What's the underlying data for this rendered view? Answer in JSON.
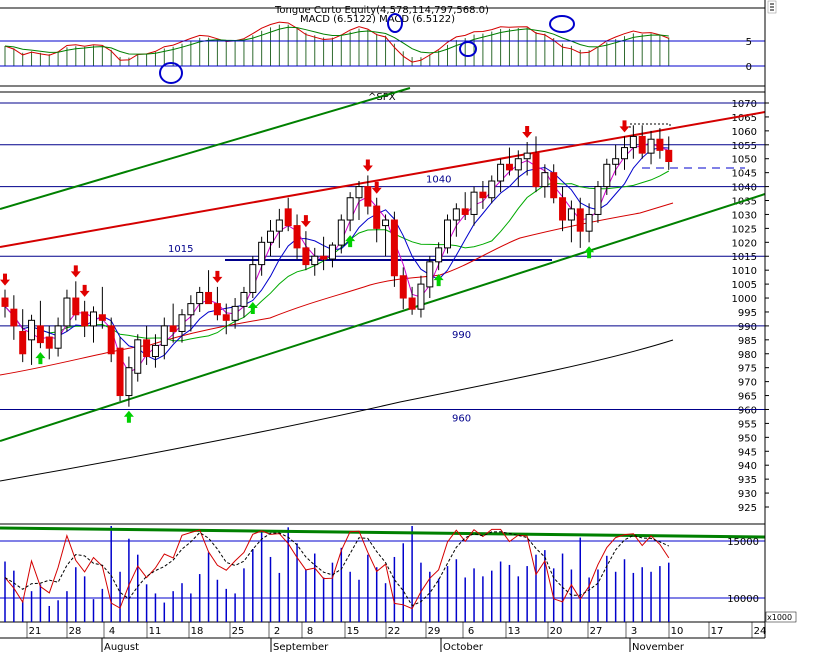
{
  "chart_data": {
    "type": "candlestick",
    "symbol": "^SPX",
    "macd_header": "MACD (6.5122) MACD (6.5122)",
    "equity_header": "Tongue Curto Equity(4,578,114,797,568.0)",
    "price_ylim": [
      918,
      1076
    ],
    "price_ticks": [
      925,
      930,
      935,
      940,
      945,
      950,
      955,
      960,
      965,
      970,
      975,
      980,
      985,
      990,
      995,
      1000,
      1005,
      1010,
      1015,
      1020,
      1025,
      1030,
      1035,
      1040,
      1045,
      1050,
      1055,
      1060,
      1065,
      1070
    ],
    "macd_ticks": [
      0,
      5
    ],
    "volume_ticks": [
      "10000",
      "15000"
    ],
    "volume_unit": "x1000",
    "x_ticks": [
      "21",
      "28",
      "4",
      "11",
      "18",
      "25",
      "2",
      "8",
      "15",
      "22",
      "29",
      "6",
      "13",
      "20",
      "27",
      "3",
      "10",
      "17",
      "24"
    ],
    "months": [
      "August",
      "September",
      "October",
      "November"
    ],
    "levels": [
      {
        "label": "960",
        "value": 960
      },
      {
        "label": "990",
        "value": 990
      },
      {
        "label": "1015",
        "value": 1015
      },
      {
        "label": "1040",
        "value": 1040
      }
    ],
    "extra_levels": [
      1055,
      1070
    ],
    "candles": [
      {
        "o": 1000,
        "h": 1003,
        "l": 993,
        "c": 997
      },
      {
        "o": 996,
        "h": 1001,
        "l": 985,
        "c": 990
      },
      {
        "o": 988,
        "h": 996,
        "l": 977,
        "c": 980
      },
      {
        "o": 985,
        "h": 994,
        "l": 976,
        "c": 992
      },
      {
        "o": 990,
        "h": 999,
        "l": 982,
        "c": 984
      },
      {
        "o": 986,
        "h": 990,
        "l": 978,
        "c": 982
      },
      {
        "o": 982,
        "h": 993,
        "l": 979,
        "c": 990
      },
      {
        "o": 990,
        "h": 1003,
        "l": 988,
        "c": 1000
      },
      {
        "o": 1000,
        "h": 1006,
        "l": 992,
        "c": 994
      },
      {
        "o": 995,
        "h": 999,
        "l": 986,
        "c": 990
      },
      {
        "o": 990,
        "h": 997,
        "l": 984,
        "c": 995
      },
      {
        "o": 994,
        "h": 1004,
        "l": 989,
        "c": 992
      },
      {
        "o": 990,
        "h": 993,
        "l": 977,
        "c": 980
      },
      {
        "o": 982,
        "h": 986,
        "l": 963,
        "c": 965
      },
      {
        "o": 965,
        "h": 979,
        "l": 961,
        "c": 975
      },
      {
        "o": 973,
        "h": 987,
        "l": 970,
        "c": 985
      },
      {
        "o": 985,
        "h": 990,
        "l": 976,
        "c": 979
      },
      {
        "o": 979,
        "h": 987,
        "l": 975,
        "c": 983
      },
      {
        "o": 983,
        "h": 993,
        "l": 978,
        "c": 990
      },
      {
        "o": 990,
        "h": 998,
        "l": 984,
        "c": 988
      },
      {
        "o": 988,
        "h": 996,
        "l": 984,
        "c": 994
      },
      {
        "o": 994,
        "h": 1001,
        "l": 988,
        "c": 998
      },
      {
        "o": 998,
        "h": 1004,
        "l": 995,
        "c": 1002
      },
      {
        "o": 1002,
        "h": 1010,
        "l": 999,
        "c": 998
      },
      {
        "o": 998,
        "h": 1004,
        "l": 992,
        "c": 994
      },
      {
        "o": 994,
        "h": 998,
        "l": 987,
        "c": 992
      },
      {
        "o": 992,
        "h": 1000,
        "l": 989,
        "c": 997
      },
      {
        "o": 997,
        "h": 1004,
        "l": 993,
        "c": 1002
      },
      {
        "o": 1002,
        "h": 1015,
        "l": 1000,
        "c": 1012
      },
      {
        "o": 1012,
        "h": 1022,
        "l": 1008,
        "c": 1020
      },
      {
        "o": 1020,
        "h": 1028,
        "l": 1015,
        "c": 1024
      },
      {
        "o": 1024,
        "h": 1032,
        "l": 1018,
        "c": 1028
      },
      {
        "o": 1032,
        "h": 1036,
        "l": 1024,
        "c": 1026
      },
      {
        "o": 1026,
        "h": 1030,
        "l": 1014,
        "c": 1018
      },
      {
        "o": 1018,
        "h": 1024,
        "l": 1010,
        "c": 1012
      },
      {
        "o": 1012,
        "h": 1018,
        "l": 1008,
        "c": 1015
      },
      {
        "o": 1015,
        "h": 1022,
        "l": 1010,
        "c": 1014
      },
      {
        "o": 1014,
        "h": 1020,
        "l": 1011,
        "c": 1019
      },
      {
        "o": 1019,
        "h": 1030,
        "l": 1016,
        "c": 1028
      },
      {
        "o": 1028,
        "h": 1038,
        "l": 1024,
        "c": 1036
      },
      {
        "o": 1036,
        "h": 1042,
        "l": 1028,
        "c": 1040
      },
      {
        "o": 1040,
        "h": 1044,
        "l": 1030,
        "c": 1033
      },
      {
        "o": 1033,
        "h": 1036,
        "l": 1020,
        "c": 1025
      },
      {
        "o": 1026,
        "h": 1030,
        "l": 1015,
        "c": 1028
      },
      {
        "o": 1028,
        "h": 1031,
        "l": 1004,
        "c": 1008
      },
      {
        "o": 1008,
        "h": 1011,
        "l": 996,
        "c": 1000
      },
      {
        "o": 1000,
        "h": 1004,
        "l": 994,
        "c": 996
      },
      {
        "o": 996,
        "h": 1008,
        "l": 993,
        "c": 1005
      },
      {
        "o": 1004,
        "h": 1015,
        "l": 1000,
        "c": 1013
      },
      {
        "o": 1013,
        "h": 1020,
        "l": 1010,
        "c": 1018
      },
      {
        "o": 1018,
        "h": 1030,
        "l": 1016,
        "c": 1028
      },
      {
        "o": 1028,
        "h": 1034,
        "l": 1022,
        "c": 1032
      },
      {
        "o": 1032,
        "h": 1038,
        "l": 1028,
        "c": 1030
      },
      {
        "o": 1030,
        "h": 1040,
        "l": 1026,
        "c": 1038
      },
      {
        "o": 1038,
        "h": 1042,
        "l": 1032,
        "c": 1036
      },
      {
        "o": 1036,
        "h": 1044,
        "l": 1034,
        "c": 1042
      },
      {
        "o": 1042,
        "h": 1050,
        "l": 1038,
        "c": 1048
      },
      {
        "o": 1048,
        "h": 1054,
        "l": 1044,
        "c": 1046
      },
      {
        "o": 1046,
        "h": 1053,
        "l": 1040,
        "c": 1050
      },
      {
        "o": 1050,
        "h": 1056,
        "l": 1044,
        "c": 1052
      },
      {
        "o": 1052,
        "h": 1058,
        "l": 1038,
        "c": 1040
      },
      {
        "o": 1040,
        "h": 1048,
        "l": 1036,
        "c": 1045
      },
      {
        "o": 1045,
        "h": 1048,
        "l": 1034,
        "c": 1036
      },
      {
        "o": 1036,
        "h": 1040,
        "l": 1024,
        "c": 1028
      },
      {
        "o": 1028,
        "h": 1035,
        "l": 1020,
        "c": 1032
      },
      {
        "o": 1032,
        "h": 1036,
        "l": 1018,
        "c": 1024
      },
      {
        "o": 1024,
        "h": 1034,
        "l": 1020,
        "c": 1030
      },
      {
        "o": 1030,
        "h": 1042,
        "l": 1027,
        "c": 1040
      },
      {
        "o": 1040,
        "h": 1050,
        "l": 1037,
        "c": 1048
      },
      {
        "o": 1048,
        "h": 1055,
        "l": 1044,
        "c": 1050
      },
      {
        "o": 1050,
        "h": 1058,
        "l": 1046,
        "c": 1054
      },
      {
        "o": 1054,
        "h": 1062,
        "l": 1050,
        "c": 1058
      },
      {
        "o": 1058,
        "h": 1062,
        "l": 1050,
        "c": 1052
      },
      {
        "o": 1052,
        "h": 1060,
        "l": 1048,
        "c": 1057
      },
      {
        "o": 1057,
        "h": 1061,
        "l": 1050,
        "c": 1053
      },
      {
        "o": 1053,
        "h": 1058,
        "l": 1046,
        "c": 1049
      }
    ],
    "volume": [
      13200,
      12400,
      9800,
      10600,
      11200,
      9300,
      9800,
      10600,
      12700,
      11900,
      9900,
      10800,
      16800,
      12300,
      15200,
      13800,
      11200,
      10400,
      9600,
      10600,
      11300,
      10400,
      12100,
      14000,
      11600,
      10800,
      10400,
      12600,
      14300,
      15800,
      13600,
      12200,
      16200,
      14800,
      12500,
      13900,
      11800,
      13100,
      14400,
      12300,
      11600,
      13800,
      12700,
      11300,
      13600,
      14800,
      17400,
      13100,
      12300,
      11700,
      12800,
      13400,
      11800,
      12600,
      11900,
      12400,
      13200,
      12900,
      11900,
      12800,
      13800,
      14200,
      12600,
      13900,
      12500,
      15300,
      11800,
      12500,
      13700,
      12300,
      13400,
      12200,
      12700,
      12300,
      12800,
      13100
    ]
  }
}
